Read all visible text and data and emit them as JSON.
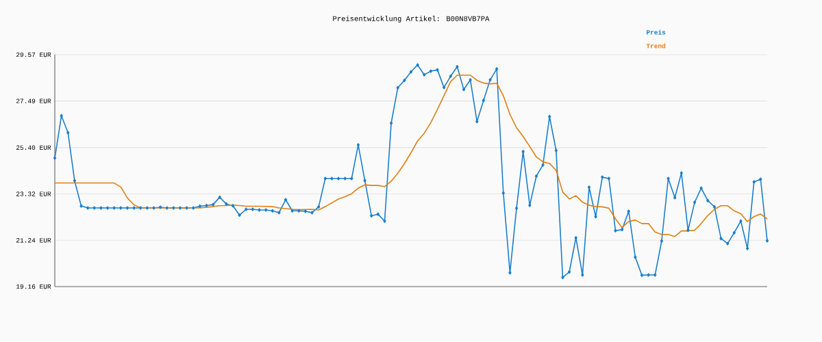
{
  "chart_data": {
    "type": "line",
    "title": "Preisentwicklung Artikel: B00N8VB7PA",
    "categories": [
      null,
      null,
      null,
      null,
      null,
      null,
      null,
      null,
      null,
      null,
      null,
      null,
      null,
      null,
      null,
      null,
      null,
      null,
      null,
      null,
      null,
      null,
      null,
      null,
      null,
      null,
      null,
      null,
      null,
      null,
      null,
      null,
      null,
      null,
      null,
      null,
      null,
      null,
      null,
      null,
      null,
      null,
      null,
      null,
      null,
      null,
      null,
      null,
      null,
      null,
      null,
      null,
      null,
      null,
      null,
      null,
      null,
      null,
      null,
      null,
      null,
      null,
      null,
      null,
      null,
      null,
      null,
      null,
      null,
      null,
      null,
      null,
      null,
      null,
      null,
      null,
      null,
      null,
      null,
      null,
      null,
      null,
      null,
      null,
      null,
      null,
      null,
      null,
      null,
      null,
      null,
      null,
      null,
      null,
      null,
      null,
      null,
      null,
      null,
      null,
      null,
      null,
      null,
      null,
      null,
      null,
      null,
      null,
      null
    ],
    "series": [
      {
        "name": "Preis",
        "color": "#1a7fcc",
        "marker": "diamond",
        "values": [
          24.93,
          26.83,
          26.07,
          23.91,
          22.78,
          22.69,
          22.69,
          22.69,
          22.69,
          22.69,
          22.69,
          22.69,
          22.69,
          22.69,
          22.69,
          22.69,
          22.72,
          22.69,
          22.69,
          22.69,
          22.69,
          22.69,
          22.77,
          22.8,
          22.84,
          23.17,
          22.87,
          22.79,
          22.37,
          22.63,
          22.63,
          22.6,
          22.6,
          22.56,
          22.48,
          23.06,
          22.56,
          22.56,
          22.54,
          22.48,
          22.74,
          24.01,
          24.01,
          24.01,
          24.01,
          24.01,
          25.52,
          23.92,
          22.34,
          22.41,
          22.1,
          26.5,
          28.09,
          28.42,
          28.8,
          29.11,
          28.67,
          28.83,
          28.89,
          28.1,
          28.6,
          29.03,
          28.01,
          28.44,
          26.57,
          27.52,
          28.44,
          28.93,
          23.36,
          19.78,
          22.68,
          25.22,
          22.81,
          24.12,
          24.62,
          26.79,
          25.27,
          19.57,
          19.82,
          21.35,
          19.68,
          23.62,
          22.3,
          24.07,
          24.01,
          21.67,
          21.72,
          22.54,
          20.48,
          19.67,
          19.68,
          19.68,
          21.21,
          24.01,
          23.15,
          24.26,
          21.69,
          22.94,
          23.58,
          23.02,
          22.74,
          21.32,
          21.09,
          21.58,
          22.1,
          20.87,
          23.86,
          23.98,
          21.22
        ]
      },
      {
        "name": "Trend",
        "color": "#e07f10",
        "marker": "none",
        "values": [
          23.81,
          23.81,
          23.81,
          23.81,
          23.81,
          23.81,
          23.81,
          23.81,
          23.81,
          23.81,
          23.63,
          23.14,
          22.83,
          22.69,
          22.69,
          22.69,
          22.69,
          22.69,
          22.69,
          22.69,
          22.69,
          22.69,
          22.69,
          22.72,
          22.75,
          22.79,
          22.8,
          22.82,
          22.8,
          22.77,
          22.77,
          22.77,
          22.76,
          22.75,
          22.69,
          22.66,
          22.63,
          22.61,
          22.62,
          22.63,
          22.6,
          22.75,
          22.92,
          23.09,
          23.2,
          23.33,
          23.58,
          23.73,
          23.7,
          23.7,
          23.65,
          23.89,
          24.25,
          24.68,
          25.17,
          25.7,
          26.04,
          26.52,
          27.11,
          27.73,
          28.36,
          28.65,
          28.65,
          28.65,
          28.42,
          28.3,
          28.26,
          28.29,
          27.73,
          26.89,
          26.29,
          25.9,
          25.45,
          24.98,
          24.76,
          24.69,
          24.38,
          23.41,
          23.09,
          23.24,
          22.95,
          22.81,
          22.75,
          22.74,
          22.68,
          22.2,
          21.81,
          22.08,
          22.15,
          21.99,
          21.99,
          21.61,
          21.5,
          21.5,
          21.41,
          21.66,
          21.66,
          21.69,
          21.99,
          22.35,
          22.63,
          22.79,
          22.79,
          22.56,
          22.43,
          22.08,
          22.3,
          22.42,
          22.2
        ]
      }
    ],
    "ylim": [
      19.16,
      29.57
    ],
    "yticks": [
      {
        "value": 19.16,
        "label": "19.16 EUR"
      },
      {
        "value": 21.24,
        "label": "21.24 EUR"
      },
      {
        "value": 23.32,
        "label": "23.32 EUR"
      },
      {
        "value": 25.4,
        "label": "25.40 EUR"
      },
      {
        "value": 27.49,
        "label": "27.49 EUR"
      },
      {
        "value": 29.57,
        "label": "29.57 EUR"
      }
    ],
    "grid": "y",
    "legend": "top right",
    "tick_labels": "y"
  }
}
